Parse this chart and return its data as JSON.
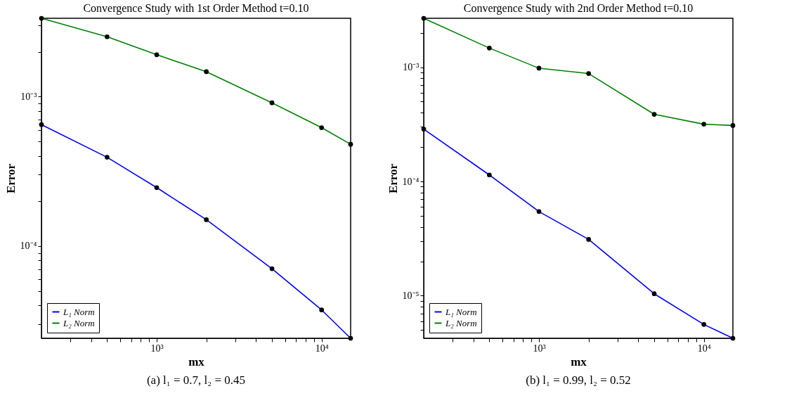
{
  "chart_data": [
    {
      "type": "line",
      "title": "Convergence Study with 1st Order Method t=0.10",
      "xlabel": "mx",
      "ylabel": "Error",
      "log": "xy",
      "legend": "bottom left",
      "marker": "circle",
      "grid": false,
      "x": [
        200,
        500,
        1000,
        2000,
        5000,
        10000,
        15000
      ],
      "series": [
        {
          "name": "L₁ Norm",
          "color": "#0000ff",
          "values": [
            0.00065,
            0.000393,
            0.000246,
            0.00015,
            7.05e-05,
            3.73e-05,
            2.41e-05
          ]
        },
        {
          "name": "L₂ Norm",
          "color": "#008000",
          "values": [
            0.00335,
            0.00252,
            0.00191,
            0.00147,
            0.00091,
            0.00062,
            0.00048
          ]
        }
      ],
      "xlim": [
        200,
        15000
      ],
      "ylim": [
        2.41e-05,
        0.00335
      ],
      "xticks": [
        {
          "value": 300,
          "label": null
        },
        {
          "value": 400,
          "label": null
        },
        {
          "value": 500,
          "label": null
        },
        {
          "value": 600,
          "label": null
        },
        {
          "value": 700,
          "label": null
        },
        {
          "value": 800,
          "label": null
        },
        {
          "value": 900,
          "label": null
        },
        {
          "value": 1000,
          "label": "10³"
        },
        {
          "value": 2000,
          "label": null
        },
        {
          "value": 3000,
          "label": null
        },
        {
          "value": 4000,
          "label": null
        },
        {
          "value": 5000,
          "label": null
        },
        {
          "value": 6000,
          "label": null
        },
        {
          "value": 7000,
          "label": null
        },
        {
          "value": 8000,
          "label": null
        },
        {
          "value": 9000,
          "label": null
        },
        {
          "value": 10000,
          "label": "10⁴"
        }
      ],
      "yticks": [
        {
          "value": 3e-05,
          "label": null
        },
        {
          "value": 4e-05,
          "label": null
        },
        {
          "value": 5e-05,
          "label": null
        },
        {
          "value": 6e-05,
          "label": null
        },
        {
          "value": 7e-05,
          "label": null
        },
        {
          "value": 8e-05,
          "label": null
        },
        {
          "value": 9e-05,
          "label": null
        },
        {
          "value": 0.0001,
          "label": "10⁻⁴"
        },
        {
          "value": 0.0002,
          "label": null
        },
        {
          "value": 0.0003,
          "label": null
        },
        {
          "value": 0.0004,
          "label": null
        },
        {
          "value": 0.0005,
          "label": null
        },
        {
          "value": 0.0006,
          "label": null
        },
        {
          "value": 0.0007,
          "label": null
        },
        {
          "value": 0.0008,
          "label": null
        },
        {
          "value": 0.0009,
          "label": null
        },
        {
          "value": 0.001,
          "label": "10⁻³"
        },
        {
          "value": 0.002,
          "label": null
        },
        {
          "value": 0.003,
          "label": null
        }
      ],
      "annotations": [
        "(a) l₁ = 0.7, l₂ = 0.45"
      ]
    },
    {
      "type": "line",
      "title": "Convergence Study with 2nd Order Method t=0.10",
      "xlabel": "mx",
      "ylabel": "Error",
      "log": "xy",
      "legend": "bottom left",
      "marker": "circle",
      "grid": false,
      "x": [
        200,
        500,
        1000,
        2000,
        5000,
        10000,
        15000
      ],
      "series": [
        {
          "name": "L₁ Norm",
          "color": "#0000ff",
          "values": [
            0.000287,
            0.000114,
            5.45e-05,
            3.11e-05,
            1.04e-05,
            5.6e-06,
            4.24e-06
          ]
        },
        {
          "name": "L₂ Norm",
          "color": "#008000",
          "values": [
            0.00268,
            0.00147,
            0.00098,
            0.00088,
            0.000387,
            0.000317,
            0.000309
          ]
        }
      ],
      "xlim": [
        200,
        15000
      ],
      "ylim": [
        4.24e-06,
        0.00268
      ],
      "xticks": [
        {
          "value": 300,
          "label": null
        },
        {
          "value": 400,
          "label": null
        },
        {
          "value": 500,
          "label": null
        },
        {
          "value": 600,
          "label": null
        },
        {
          "value": 700,
          "label": null
        },
        {
          "value": 800,
          "label": null
        },
        {
          "value": 900,
          "label": null
        },
        {
          "value": 1000,
          "label": "10³"
        },
        {
          "value": 2000,
          "label": null
        },
        {
          "value": 3000,
          "label": null
        },
        {
          "value": 4000,
          "label": null
        },
        {
          "value": 5000,
          "label": null
        },
        {
          "value": 6000,
          "label": null
        },
        {
          "value": 7000,
          "label": null
        },
        {
          "value": 8000,
          "label": null
        },
        {
          "value": 9000,
          "label": null
        },
        {
          "value": 10000,
          "label": "10⁴"
        }
      ],
      "yticks": [
        {
          "value": 5e-06,
          "label": null
        },
        {
          "value": 6e-06,
          "label": null
        },
        {
          "value": 7e-06,
          "label": null
        },
        {
          "value": 8e-06,
          "label": null
        },
        {
          "value": 9e-06,
          "label": null
        },
        {
          "value": 1e-05,
          "label": "10⁻⁵"
        },
        {
          "value": 2e-05,
          "label": null
        },
        {
          "value": 3e-05,
          "label": null
        },
        {
          "value": 4e-05,
          "label": null
        },
        {
          "value": 5e-05,
          "label": null
        },
        {
          "value": 6e-05,
          "label": null
        },
        {
          "value": 7e-05,
          "label": null
        },
        {
          "value": 8e-05,
          "label": null
        },
        {
          "value": 9e-05,
          "label": null
        },
        {
          "value": 0.0001,
          "label": "10⁻⁴"
        },
        {
          "value": 0.0002,
          "label": null
        },
        {
          "value": 0.0003,
          "label": null
        },
        {
          "value": 0.0004,
          "label": null
        },
        {
          "value": 0.0005,
          "label": null
        },
        {
          "value": 0.0006,
          "label": null
        },
        {
          "value": 0.0007,
          "label": null
        },
        {
          "value": 0.0008,
          "label": null
        },
        {
          "value": 0.0009,
          "label": null
        },
        {
          "value": 0.001,
          "label": "10⁻³"
        },
        {
          "value": 0.002,
          "label": null
        }
      ],
      "annotations": [
        "(b) l₁ = 0.99, l₂ = 0.52"
      ]
    }
  ]
}
